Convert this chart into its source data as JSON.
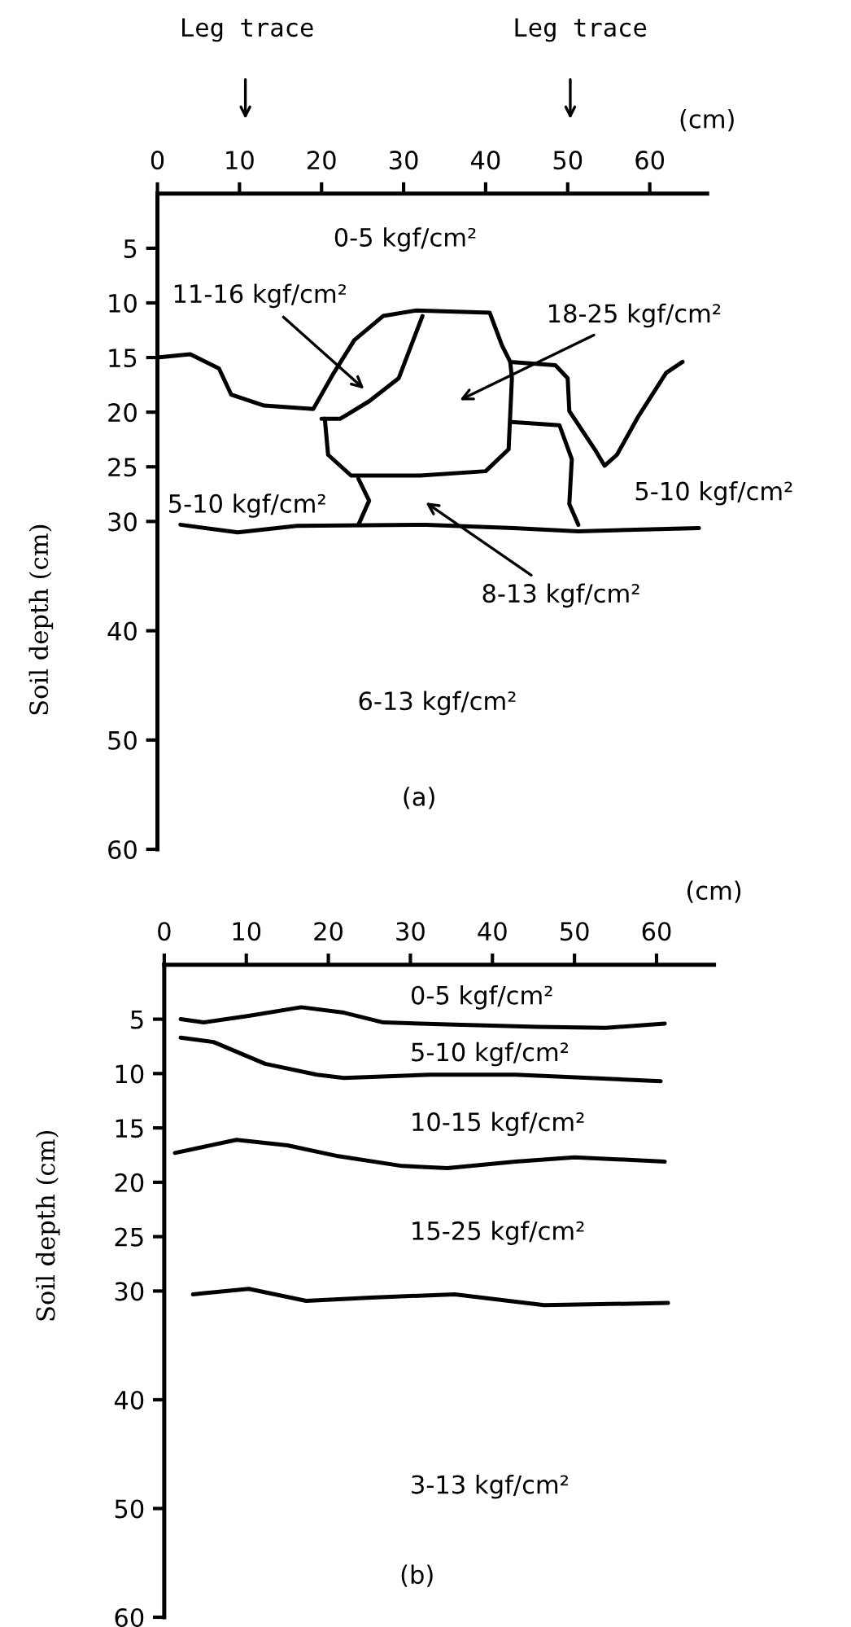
{
  "chart_data": [
    {
      "type": "line",
      "xlabel": "(cm)",
      "ylabel": "Soil depth (cm)",
      "xlim": [
        0,
        67
      ],
      "ylim": [
        60,
        0
      ],
      "xticks": [
        0,
        10,
        20,
        30,
        40,
        50,
        60
      ],
      "yticks": [
        5,
        10,
        15,
        20,
        25,
        30,
        40,
        50,
        60
      ],
      "line_style": "solid",
      "marker": "none",
      "series": [
        {
          "color": "#000000",
          "x": [
            0,
            4,
            7.5,
            9,
            13,
            19,
            21.5,
            24,
            27.5,
            31.5,
            40.5,
            42,
            43,
            48.5,
            50,
            50.2,
            53.3,
            54.5,
            56,
            58.6,
            62,
            64
          ],
          "values": [
            15,
            14.7,
            16,
            18.4,
            19.4,
            19.7,
            16.4,
            13.4,
            11.2,
            10.7,
            10.9,
            13.9,
            15.4,
            15.7,
            16.9,
            19.9,
            23.4,
            24.9,
            23.9,
            20.4,
            16.4,
            15.4
          ]
        },
        {
          "color": "#000000",
          "x": [
            32.3,
            29.4,
            25.8,
            22.3,
            20
          ],
          "values": [
            11.2,
            16.9,
            19,
            20.6,
            20.6
          ]
        },
        {
          "color": "#000000",
          "x": [
            20.4,
            20.8,
            23.6,
            32,
            40,
            42.8,
            43.2,
            43
          ],
          "values": [
            20.6,
            23.9,
            25.8,
            25.8,
            25.4,
            23.4,
            16.9,
            15.4
          ]
        },
        {
          "color": "#000000",
          "x": [
            43.2,
            49,
            50.5,
            50.2,
            51.3
          ],
          "values": [
            20.9,
            21.2,
            24.3,
            28.4,
            30.3
          ]
        },
        {
          "color": "#000000",
          "x": [
            24.5,
            25.8,
            24.5
          ],
          "values": [
            26.1,
            28.1,
            30.3
          ]
        },
        {
          "color": "#000000",
          "x": [
            2.8,
            9.8,
            17,
            32.8,
            43.4,
            51.3,
            66
          ],
          "values": [
            30.3,
            31,
            30.4,
            30.3,
            30.6,
            30.9,
            30.6
          ]
        }
      ],
      "annotations": [
        "Leg trace",
        "Leg trace",
        "0-5 kgf/cm²",
        "11-16 kgf/cm²",
        "18-25 kgf/cm²",
        "5-10 kgf/cm²",
        "5-10 kgf/cm²",
        "8-13 kgf/cm²",
        "6-13 kgf/cm²",
        "(a)"
      ]
    },
    {
      "type": "line",
      "xlabel": "(cm)",
      "ylabel": "Soil depth (cm)",
      "xlim": [
        0,
        67
      ],
      "ylim": [
        60,
        0
      ],
      "xticks": [
        0,
        10,
        20,
        30,
        40,
        50,
        60
      ],
      "yticks": [
        5,
        10,
        15,
        20,
        25,
        30,
        40,
        50,
        60
      ],
      "line_style": "solid",
      "marker": "none",
      "series": [
        {
          "color": "#000000",
          "x": [
            2,
            4.8,
            10.3,
            16.7,
            21.9,
            26.7,
            35.4,
            45.5,
            53.8,
            61
          ],
          "values": [
            5,
            5.3,
            4.7,
            3.9,
            4.4,
            5.3,
            5.5,
            5.7,
            5.8,
            5.4
          ]
        },
        {
          "color": "#000000",
          "x": [
            2,
            6,
            12.3,
            18.6,
            21.9,
            32.4,
            42.8,
            60.5
          ],
          "values": [
            6.7,
            7.1,
            9.1,
            10.1,
            10.4,
            10.1,
            10.1,
            10.7
          ]
        },
        {
          "color": "#000000",
          "x": [
            1.3,
            8.8,
            15,
            21.2,
            29,
            34.5,
            42.8,
            50,
            61
          ],
          "values": [
            17.3,
            16.1,
            16.6,
            17.6,
            18.5,
            18.7,
            18.1,
            17.7,
            18.1
          ]
        },
        {
          "color": "#000000",
          "x": [
            3.5,
            10.3,
            17.3,
            25.2,
            35.4,
            46.3,
            61.4
          ],
          "values": [
            30.3,
            29.8,
            30.9,
            30.6,
            30.3,
            31.3,
            31.1
          ]
        }
      ],
      "annotations": [
        "0-5 kgf/cm²",
        "5-10 kgf/cm²",
        "10-15 kgf/cm²",
        "15-25 kgf/cm²",
        "3-13 kgf/cm²",
        "(b)"
      ]
    }
  ]
}
